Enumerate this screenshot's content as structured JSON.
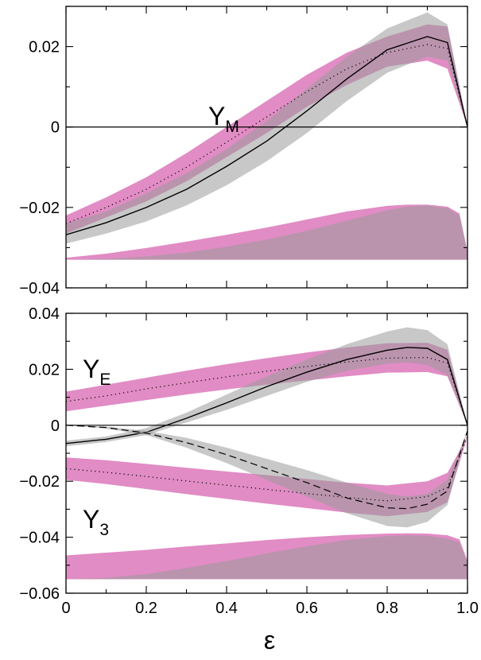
{
  "colors": {
    "magenta_band": "#d96bb3",
    "grey_band": "#9a9a9a",
    "axis": "#000000"
  },
  "x_axis": {
    "label": "ε",
    "ticks": [
      "0",
      "0.2",
      "0.4",
      "0.6",
      "0.8",
      "1.0"
    ],
    "tick_values": [
      0,
      0.2,
      0.4,
      0.6,
      0.8,
      1.0
    ]
  },
  "chart_data": [
    {
      "type": "area",
      "panel": "top",
      "xlim": [
        0,
        1
      ],
      "ylim": [
        -0.04,
        0.03
      ],
      "ytick_values": [
        -0.04,
        -0.02,
        0,
        0.02
      ],
      "ytick_labels": [
        "−0.04",
        "−0.02",
        "0",
        "0.02"
      ],
      "zero_line": true,
      "labels": [
        {
          "main": "Y",
          "sub": "M"
        }
      ],
      "series": [
        {
          "kind": "band",
          "color": "magenta",
          "x": [
            0,
            0.1,
            0.2,
            0.3,
            0.4,
            0.5,
            0.6,
            0.7,
            0.8,
            0.9,
            0.95,
            1.0
          ],
          "upper": [
            -0.022,
            -0.0175,
            -0.0125,
            -0.0065,
            0.0,
            0.0065,
            0.013,
            0.0185,
            0.0225,
            0.0255,
            0.025,
            0.0
          ],
          "lower": [
            -0.0265,
            -0.0225,
            -0.0185,
            -0.0135,
            -0.0075,
            -0.0015,
            0.005,
            0.0105,
            0.015,
            0.0165,
            0.0145,
            0.0
          ]
        },
        {
          "kind": "band",
          "color": "grey",
          "x": [
            0,
            0.1,
            0.2,
            0.3,
            0.4,
            0.5,
            0.6,
            0.7,
            0.8,
            0.9,
            0.95,
            1.0
          ],
          "upper": [
            -0.024,
            -0.021,
            -0.0165,
            -0.0115,
            -0.0055,
            0.0015,
            0.0095,
            0.0175,
            0.0245,
            0.0285,
            0.0255,
            0.0
          ],
          "lower": [
            -0.029,
            -0.0265,
            -0.0235,
            -0.0195,
            -0.0145,
            -0.0085,
            -0.0015,
            0.0065,
            0.0135,
            0.0175,
            0.0165,
            0.0
          ]
        },
        {
          "kind": "line",
          "style": "dotted",
          "x": [
            0,
            0.1,
            0.2,
            0.3,
            0.4,
            0.5,
            0.6,
            0.7,
            0.8,
            0.9,
            0.95,
            1.0
          ],
          "y": [
            -0.024,
            -0.02,
            -0.0155,
            -0.01,
            -0.0038,
            0.0025,
            0.0088,
            0.0145,
            0.0185,
            0.0205,
            0.0195,
            0.0
          ]
        },
        {
          "kind": "line",
          "style": "solid",
          "x": [
            0,
            0.1,
            0.2,
            0.3,
            0.4,
            0.5,
            0.6,
            0.7,
            0.8,
            0.9,
            0.95,
            1.0
          ],
          "y": [
            -0.0268,
            -0.0238,
            -0.02,
            -0.0155,
            -0.0098,
            -0.0035,
            0.004,
            0.012,
            0.0192,
            0.0225,
            0.021,
            0.0
          ]
        },
        {
          "kind": "band",
          "color": "magenta",
          "baseline": -0.033,
          "x": [
            0,
            0.1,
            0.2,
            0.3,
            0.4,
            0.5,
            0.6,
            0.7,
            0.8,
            0.85,
            0.9,
            0.95,
            0.98,
            1.0
          ],
          "upper": [
            -0.0325,
            -0.0315,
            -0.0301,
            -0.0285,
            -0.0268,
            -0.025,
            -0.023,
            -0.021,
            -0.0196,
            -0.0193,
            -0.0193,
            -0.0198,
            -0.0215,
            -0.031
          ],
          "lower": [
            -0.033,
            -0.033,
            -0.033,
            -0.033,
            -0.033,
            -0.033,
            -0.033,
            -0.033,
            -0.033,
            -0.033,
            -0.033,
            -0.033,
            -0.033,
            -0.033
          ]
        },
        {
          "kind": "band",
          "color": "grey",
          "baseline": -0.033,
          "x": [
            0,
            0.1,
            0.2,
            0.3,
            0.4,
            0.5,
            0.6,
            0.7,
            0.8,
            0.85,
            0.9,
            0.95,
            0.98,
            1.0
          ],
          "upper": [
            -0.033,
            -0.0328,
            -0.0322,
            -0.0312,
            -0.0298,
            -0.028,
            -0.0258,
            -0.0233,
            -0.0207,
            -0.0198,
            -0.0195,
            -0.0202,
            -0.022,
            -0.031
          ],
          "lower": [
            -0.033,
            -0.033,
            -0.033,
            -0.033,
            -0.033,
            -0.033,
            -0.033,
            -0.033,
            -0.033,
            -0.033,
            -0.033,
            -0.033,
            -0.033,
            -0.033
          ]
        }
      ]
    },
    {
      "type": "area",
      "panel": "bottom",
      "xlim": [
        0,
        1
      ],
      "ylim": [
        -0.06,
        0.04
      ],
      "ytick_values": [
        -0.06,
        -0.04,
        -0.02,
        0,
        0.02,
        0.04
      ],
      "ytick_labels": [
        "−0.06",
        "−0.04",
        "−0.02",
        "0",
        "0.02",
        "0.04"
      ],
      "zero_line": true,
      "labels": [
        {
          "main": "Y",
          "sub": "E"
        },
        {
          "main": "Y",
          "sub": "3"
        }
      ],
      "series": [
        {
          "kind": "band",
          "color": "magenta",
          "x": [
            0,
            0.1,
            0.2,
            0.3,
            0.4,
            0.5,
            0.6,
            0.7,
            0.8,
            0.9,
            0.95,
            1.0
          ],
          "upper": [
            0.012,
            0.0145,
            0.017,
            0.0195,
            0.0218,
            0.024,
            0.026,
            0.0278,
            0.0293,
            0.0295,
            0.027,
            0.0
          ],
          "lower": [
            0.005,
            0.007,
            0.009,
            0.011,
            0.0128,
            0.0145,
            0.016,
            0.0175,
            0.0188,
            0.019,
            0.0175,
            0.0
          ]
        },
        {
          "kind": "band",
          "color": "grey",
          "x": [
            0,
            0.1,
            0.2,
            0.3,
            0.4,
            0.5,
            0.6,
            0.7,
            0.8,
            0.85,
            0.9,
            0.95,
            1.0
          ],
          "upper": [
            -0.0055,
            -0.004,
            -0.001,
            0.0045,
            0.011,
            0.0175,
            0.0235,
            0.029,
            0.0335,
            0.035,
            0.034,
            0.029,
            0.0
          ],
          "lower": [
            -0.0075,
            -0.006,
            -0.0035,
            0.001,
            0.0055,
            0.0105,
            0.0155,
            0.0195,
            0.022,
            0.0225,
            0.0215,
            0.018,
            0.0
          ]
        },
        {
          "kind": "line",
          "style": "dotted",
          "x": [
            0,
            0.1,
            0.2,
            0.3,
            0.4,
            0.5,
            0.6,
            0.7,
            0.8,
            0.9,
            0.95,
            1.0
          ],
          "y": [
            0.0085,
            0.0105,
            0.013,
            0.0152,
            0.0173,
            0.0193,
            0.021,
            0.0226,
            0.024,
            0.0242,
            0.0222,
            0.0
          ]
        },
        {
          "kind": "line",
          "style": "solid",
          "x": [
            0,
            0.1,
            0.2,
            0.3,
            0.4,
            0.5,
            0.6,
            0.7,
            0.8,
            0.85,
            0.9,
            0.95,
            1.0
          ],
          "y": [
            -0.0065,
            -0.005,
            -0.0025,
            0.0025,
            0.008,
            0.0138,
            0.019,
            0.0235,
            0.0268,
            0.0278,
            0.0275,
            0.0235,
            0.0
          ]
        },
        {
          "kind": "band",
          "color": "magenta",
          "x": [
            0,
            0.1,
            0.2,
            0.3,
            0.4,
            0.5,
            0.6,
            0.7,
            0.8,
            0.9,
            0.95,
            1.0
          ],
          "upper": [
            -0.0115,
            -0.0125,
            -0.0138,
            -0.0152,
            -0.0165,
            -0.0178,
            -0.0192,
            -0.0205,
            -0.0215,
            -0.02,
            -0.017,
            -0.004
          ],
          "lower": [
            -0.0195,
            -0.021,
            -0.0228,
            -0.0246,
            -0.0263,
            -0.028,
            -0.0296,
            -0.0312,
            -0.0325,
            -0.031,
            -0.0275,
            -0.004
          ]
        },
        {
          "kind": "band",
          "color": "grey",
          "x": [
            0,
            0.1,
            0.2,
            0.3,
            0.4,
            0.5,
            0.6,
            0.7,
            0.8,
            0.85,
            0.9,
            0.95,
            1.0
          ],
          "upper": [
            0.0,
            -0.0005,
            -0.002,
            -0.0045,
            -0.008,
            -0.012,
            -0.016,
            -0.0205,
            -0.0245,
            -0.0255,
            -0.0245,
            -0.0195,
            -0.002
          ],
          "lower": [
            0.0,
            -0.0012,
            -0.0035,
            -0.008,
            -0.0135,
            -0.0195,
            -0.0255,
            -0.0315,
            -0.036,
            -0.0365,
            -0.0345,
            -0.0285,
            -0.002
          ]
        },
        {
          "kind": "line",
          "style": "dotted",
          "x": [
            0,
            0.1,
            0.2,
            0.3,
            0.4,
            0.5,
            0.6,
            0.7,
            0.8,
            0.9,
            0.95,
            1.0
          ],
          "y": [
            -0.0155,
            -0.0168,
            -0.0183,
            -0.0199,
            -0.0214,
            -0.0229,
            -0.0244,
            -0.0258,
            -0.027,
            -0.0255,
            -0.0222,
            -0.004
          ]
        },
        {
          "kind": "line",
          "style": "dashed",
          "x": [
            0,
            0.1,
            0.2,
            0.3,
            0.4,
            0.5,
            0.6,
            0.7,
            0.8,
            0.85,
            0.9,
            0.95,
            1.0
          ],
          "y": [
            0.0,
            -0.0008,
            -0.0028,
            -0.0062,
            -0.0105,
            -0.0155,
            -0.0205,
            -0.026,
            -0.0295,
            -0.0298,
            -0.0282,
            -0.0235,
            -0.002
          ]
        },
        {
          "kind": "band",
          "color": "magenta",
          "x": [
            0,
            0.1,
            0.2,
            0.3,
            0.4,
            0.5,
            0.6,
            0.7,
            0.8,
            0.85,
            0.9,
            0.95,
            0.98,
            1.0
          ],
          "upper": [
            -0.0465,
            -0.0455,
            -0.0445,
            -0.0433,
            -0.0422,
            -0.041,
            -0.04,
            -0.0392,
            -0.0387,
            -0.0386,
            -0.0387,
            -0.0393,
            -0.0408,
            -0.0485
          ],
          "lower": [
            -0.055,
            -0.055,
            -0.055,
            -0.055,
            -0.055,
            -0.055,
            -0.055,
            -0.055,
            -0.055,
            -0.055,
            -0.055,
            -0.055,
            -0.055,
            -0.055
          ]
        },
        {
          "kind": "band",
          "color": "grey",
          "x": [
            0,
            0.1,
            0.2,
            0.3,
            0.4,
            0.5,
            0.6,
            0.7,
            0.8,
            0.85,
            0.9,
            0.95,
            0.98,
            1.0
          ],
          "upper": [
            -0.055,
            -0.0545,
            -0.0532,
            -0.051,
            -0.0485,
            -0.0458,
            -0.0432,
            -0.041,
            -0.0396,
            -0.0393,
            -0.0395,
            -0.0405,
            -0.042,
            -0.049
          ],
          "lower": [
            -0.055,
            -0.055,
            -0.055,
            -0.055,
            -0.055,
            -0.055,
            -0.055,
            -0.055,
            -0.055,
            -0.055,
            -0.055,
            -0.055,
            -0.055,
            -0.055
          ]
        }
      ]
    }
  ]
}
